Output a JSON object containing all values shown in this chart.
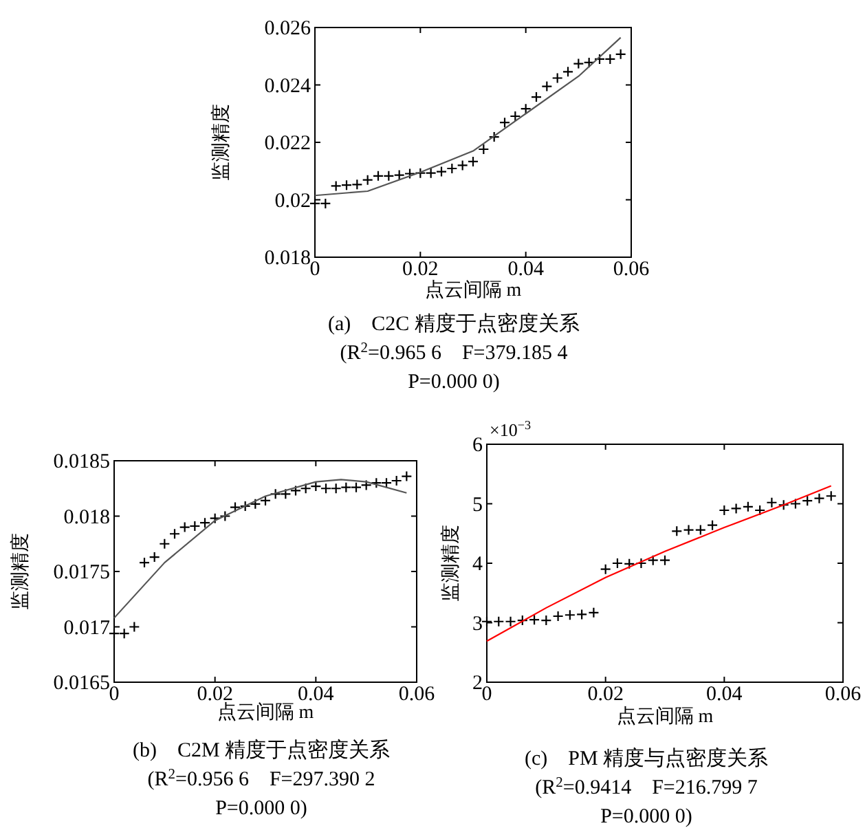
{
  "chart_data": [
    {
      "type": "scatter",
      "title": "(a)　C2C 精度于点密度关系",
      "subtitle": "(R$^{2}$=0.965 6　F=379.185 4",
      "annotations": [
        "P=0.000 0)"
      ],
      "xlabel": "点云间隔 m",
      "ylabel": "监测精度",
      "x": [
        0,
        0.002,
        0.004,
        0.006,
        0.008,
        0.01,
        0.012,
        0.014,
        0.016,
        0.018,
        0.02,
        0.022,
        0.024,
        0.026,
        0.028,
        0.03,
        0.032,
        0.034,
        0.036,
        0.038,
        0.04,
        0.042,
        0.044,
        0.046,
        0.048,
        0.05,
        0.052,
        0.054,
        0.056,
        0.058
      ],
      "series": [
        {
          "color": "#000000",
          "marker": "cross",
          "values": [
            0.01987,
            0.01987,
            0.02048,
            0.02051,
            0.02053,
            0.02069,
            0.02083,
            0.02083,
            0.02086,
            0.02091,
            0.02093,
            0.02093,
            0.02098,
            0.02109,
            0.0212,
            0.02133,
            0.02176,
            0.02219,
            0.02269,
            0.02291,
            0.02317,
            0.02358,
            0.02395,
            0.02424,
            0.02446,
            0.02474,
            0.02478,
            0.0249,
            0.0249,
            0.02507
          ]
        },
        {
          "type": "line",
          "color": "#555555",
          "x": [
            0,
            0.01,
            0.02,
            0.03,
            0.04,
            0.05,
            0.058
          ],
          "values": [
            0.02015,
            0.0203,
            0.02096,
            0.0217,
            0.023,
            0.0243,
            0.02565
          ]
        }
      ],
      "line_style": "solid",
      "grid": false,
      "xlim": [
        0,
        0.06
      ],
      "xticks": [
        0,
        0.02,
        0.04,
        0.06
      ],
      "ylim": [
        0.018,
        0.026
      ],
      "yticks": [
        0.018,
        0.02,
        0.022,
        0.024,
        0.026
      ]
    },
    {
      "type": "scatter",
      "title": "(b)　C2M 精度于点密度关系",
      "subtitle": "(R$^{2}$=0.956 6　F=297.390 2",
      "annotations": [
        "P=0.000 0)"
      ],
      "xlabel": "点云间隔 m",
      "ylabel": "监测精度",
      "x": [
        0,
        0.002,
        0.004,
        0.006,
        0.008,
        0.01,
        0.012,
        0.014,
        0.016,
        0.018,
        0.02,
        0.022,
        0.024,
        0.026,
        0.028,
        0.03,
        0.032,
        0.034,
        0.036,
        0.038,
        0.04,
        0.042,
        0.044,
        0.046,
        0.048,
        0.05,
        0.052,
        0.054,
        0.056,
        0.058
      ],
      "series": [
        {
          "color": "#000000",
          "marker": "cross",
          "values": [
            0.01694,
            0.01694,
            0.017,
            0.01758,
            0.01763,
            0.01775,
            0.01784,
            0.0179,
            0.01791,
            0.01794,
            0.01798,
            0.018,
            0.01808,
            0.01809,
            0.01811,
            0.01814,
            0.0182,
            0.0182,
            0.01823,
            0.01825,
            0.01827,
            0.01825,
            0.01825,
            0.01826,
            0.01826,
            0.01828,
            0.0183,
            0.0183,
            0.01832,
            0.01836
          ]
        },
        {
          "type": "line",
          "color": "#555555",
          "x": [
            0,
            0.01,
            0.02,
            0.03,
            0.04,
            0.045,
            0.05,
            0.058
          ],
          "values": [
            0.01708,
            0.01758,
            0.01796,
            0.01818,
            0.01831,
            0.01833,
            0.01831,
            0.01821
          ]
        }
      ],
      "line_style": "solid",
      "grid": false,
      "xlim": [
        0,
        0.06
      ],
      "xticks": [
        0,
        0.02,
        0.04,
        0.06
      ],
      "ylim": [
        0.0165,
        0.0185
      ],
      "yticks": [
        0.0165,
        0.017,
        0.0175,
        0.018,
        0.0185
      ]
    },
    {
      "type": "scatter",
      "title": "(c)　PM 精度与点密度关系",
      "subtitle": "(R$^{2}$=0.9414　F=216.799 7",
      "annotations": [
        "P=0.000 0)",
        "×10$^{−3}$"
      ],
      "xlabel": "点云间隔 m",
      "ylabel": "监测精度",
      "x": [
        0,
        0.002,
        0.004,
        0.006,
        0.008,
        0.01,
        0.012,
        0.014,
        0.016,
        0.018,
        0.02,
        0.022,
        0.024,
        0.026,
        0.028,
        0.03,
        0.032,
        0.034,
        0.036,
        0.038,
        0.04,
        0.042,
        0.044,
        0.046,
        0.048,
        0.05,
        0.052,
        0.054,
        0.056,
        0.058
      ],
      "series": [
        {
          "color": "#000000",
          "marker": "cross",
          "values": [
            3.02,
            3.02,
            3.02,
            3.04,
            3.05,
            3.04,
            3.11,
            3.13,
            3.14,
            3.17,
            3.9,
            4.0,
            3.99,
            4.0,
            4.05,
            4.05,
            4.54,
            4.56,
            4.56,
            4.64,
            4.89,
            4.92,
            4.95,
            4.89,
            5.02,
            4.98,
            5.0,
            5.05,
            5.09,
            5.13
          ]
        },
        {
          "type": "line",
          "color": "#ff0000",
          "x": [
            0,
            0.01,
            0.02,
            0.03,
            0.04,
            0.05,
            0.058
          ],
          "values": [
            2.69,
            3.25,
            3.76,
            4.2,
            4.6,
            4.98,
            5.3
          ]
        }
      ],
      "line_style": "solid",
      "grid": false,
      "xlim": [
        0,
        0.06
      ],
      "xticks": [
        0,
        0.02,
        0.04,
        0.06
      ],
      "ylim": [
        2,
        6
      ],
      "yticks": [
        2,
        3,
        4,
        5,
        6
      ]
    }
  ]
}
